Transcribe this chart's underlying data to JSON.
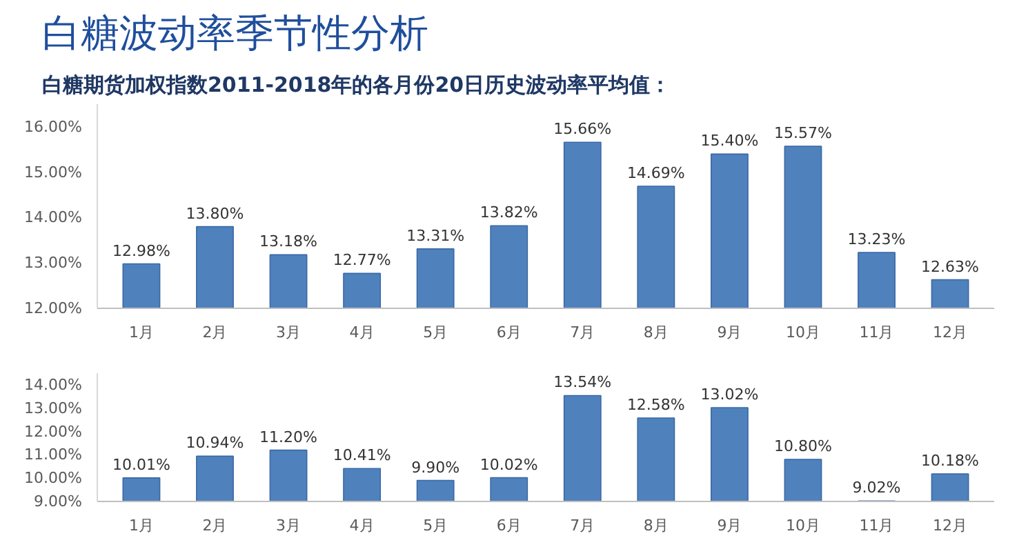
{
  "chart_data": [
    {
      "type": "bar",
      "title": "白糖波动率季节性分析",
      "subtitle": "白糖期货加权指数2011-2018年的各月份20日历史波动率平均值：",
      "categories": [
        "1月",
        "2月",
        "3月",
        "4月",
        "5月",
        "6月",
        "7月",
        "8月",
        "9月",
        "10月",
        "11月",
        "12月"
      ],
      "values": [
        12.98,
        13.8,
        13.18,
        12.77,
        13.31,
        13.82,
        15.66,
        14.69,
        15.4,
        15.57,
        13.23,
        12.63
      ],
      "value_labels": [
        "12.98%",
        "13.80%",
        "13.18%",
        "12.77%",
        "13.31%",
        "13.82%",
        "15.66%",
        "14.69%",
        "15.40%",
        "15.57%",
        "13.23%",
        "12.63%"
      ],
      "color": "#4f81bd",
      "ylim": [
        12,
        16.5
      ],
      "yticks": [
        {
          "value": 12,
          "label": "12.00%"
        },
        {
          "value": 13,
          "label": "13.00%"
        },
        {
          "value": 14,
          "label": "14.00%"
        },
        {
          "value": 15,
          "label": "15.00%"
        },
        {
          "value": 16,
          "label": "16.00%"
        }
      ],
      "grid": false
    },
    {
      "type": "bar",
      "categories": [
        "1月",
        "2月",
        "3月",
        "4月",
        "5月",
        "6月",
        "7月",
        "8月",
        "9月",
        "10月",
        "11月",
        "12月"
      ],
      "values": [
        10.01,
        10.94,
        11.2,
        10.41,
        9.9,
        10.02,
        13.54,
        12.58,
        13.02,
        10.8,
        9.02,
        10.18
      ],
      "value_labels": [
        "10.01%",
        "10.94%",
        "11.20%",
        "10.41%",
        "9.90%",
        "10.02%",
        "13.54%",
        "12.58%",
        "13.02%",
        "10.80%",
        "9.02%",
        "10.18%"
      ],
      "color": "#4f81bd",
      "ylim": [
        9,
        14.5
      ],
      "yticks": [
        {
          "value": 9,
          "label": "9.00%"
        },
        {
          "value": 10,
          "label": "10.00%"
        },
        {
          "value": 11,
          "label": "11.00%"
        },
        {
          "value": 12,
          "label": "12.00%"
        },
        {
          "value": 13,
          "label": "13.00%"
        },
        {
          "value": 14,
          "label": "14.00%"
        }
      ],
      "grid": false
    }
  ]
}
